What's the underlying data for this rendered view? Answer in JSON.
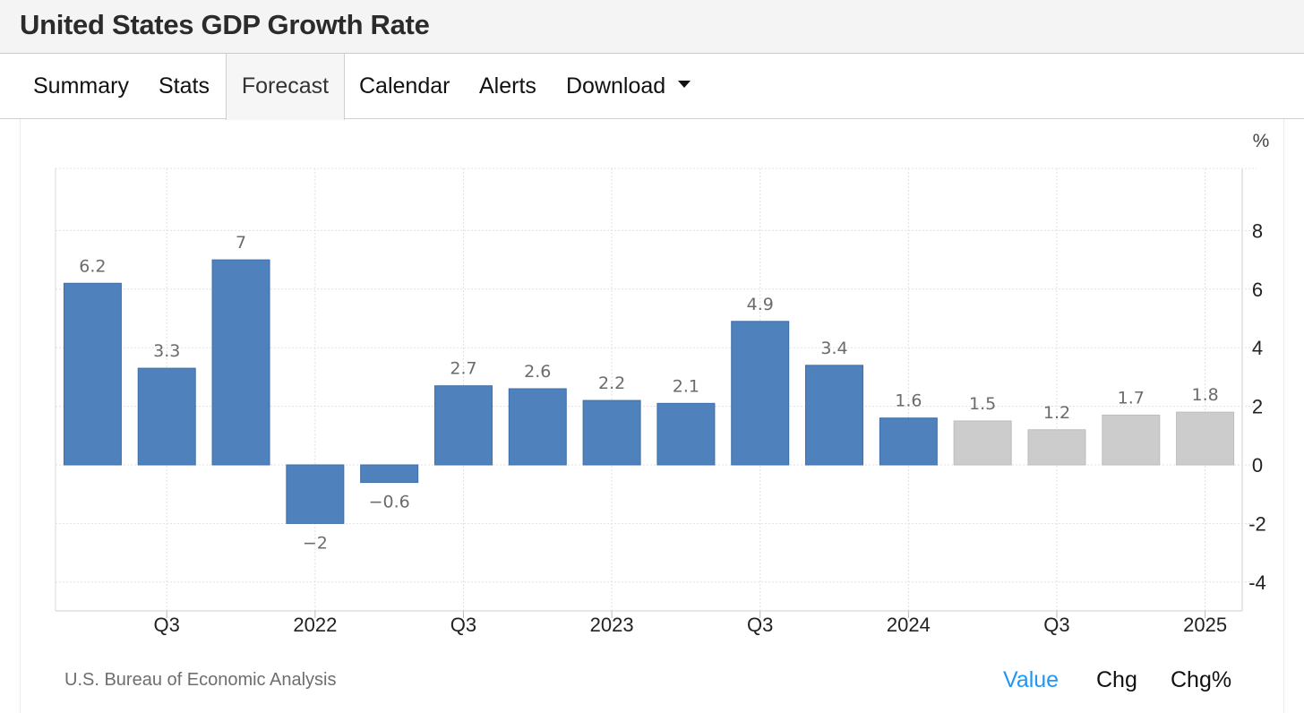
{
  "page": {
    "title": "United States GDP Growth Rate"
  },
  "tabs": [
    {
      "label": "Summary"
    },
    {
      "label": "Stats"
    },
    {
      "label": "Forecast"
    },
    {
      "label": "Calendar"
    },
    {
      "label": "Alerts"
    },
    {
      "label": "Download"
    }
  ],
  "active_tab": "Forecast",
  "source": "U.S. Bureau of Economic Analysis",
  "view_modes": [
    "Value",
    "Chg",
    "Chg%"
  ],
  "active_view_mode": "Value",
  "colors": {
    "actual": "#4f81bd",
    "forecast": "#cccccc",
    "active_link": "#2196f3"
  },
  "chart_data": {
    "type": "bar",
    "unit": "%",
    "values": [
      6.2,
      3.3,
      7,
      -2,
      -0.6,
      2.7,
      2.6,
      2.2,
      2.1,
      4.9,
      3.4,
      1.6,
      1.5,
      1.2,
      1.7,
      1.8
    ],
    "value_labels": [
      "6.2",
      "3.3",
      "7",
      "−2",
      "−0.6",
      "2.7",
      "2.6",
      "2.2",
      "2.1",
      "4.9",
      "3.4",
      "1.6",
      "1.5",
      "1.2",
      "1.7",
      "1.8"
    ],
    "status": [
      "actual",
      "actual",
      "actual",
      "actual",
      "actual",
      "actual",
      "actual",
      "actual",
      "actual",
      "actual",
      "actual",
      "actual",
      "forecast",
      "forecast",
      "forecast",
      "forecast"
    ],
    "x_ticks": [
      {
        "label": "Q3",
        "index": 1
      },
      {
        "label": "2022",
        "index": 3
      },
      {
        "label": "Q3",
        "index": 5
      },
      {
        "label": "2023",
        "index": 7
      },
      {
        "label": "Q3",
        "index": 9
      },
      {
        "label": "2024",
        "index": 11
      },
      {
        "label": "Q3",
        "index": 13
      },
      {
        "label": "2025",
        "index": 15
      }
    ],
    "y_ticks": [
      8,
      6,
      4,
      2,
      0,
      -2,
      -4
    ],
    "y_tick_labels": [
      "8",
      "6",
      "4",
      "2",
      "0",
      "-2",
      "-4"
    ],
    "ylim": [
      -5,
      10
    ],
    "y_axis_position": "right",
    "grid": true,
    "legend": "none"
  }
}
